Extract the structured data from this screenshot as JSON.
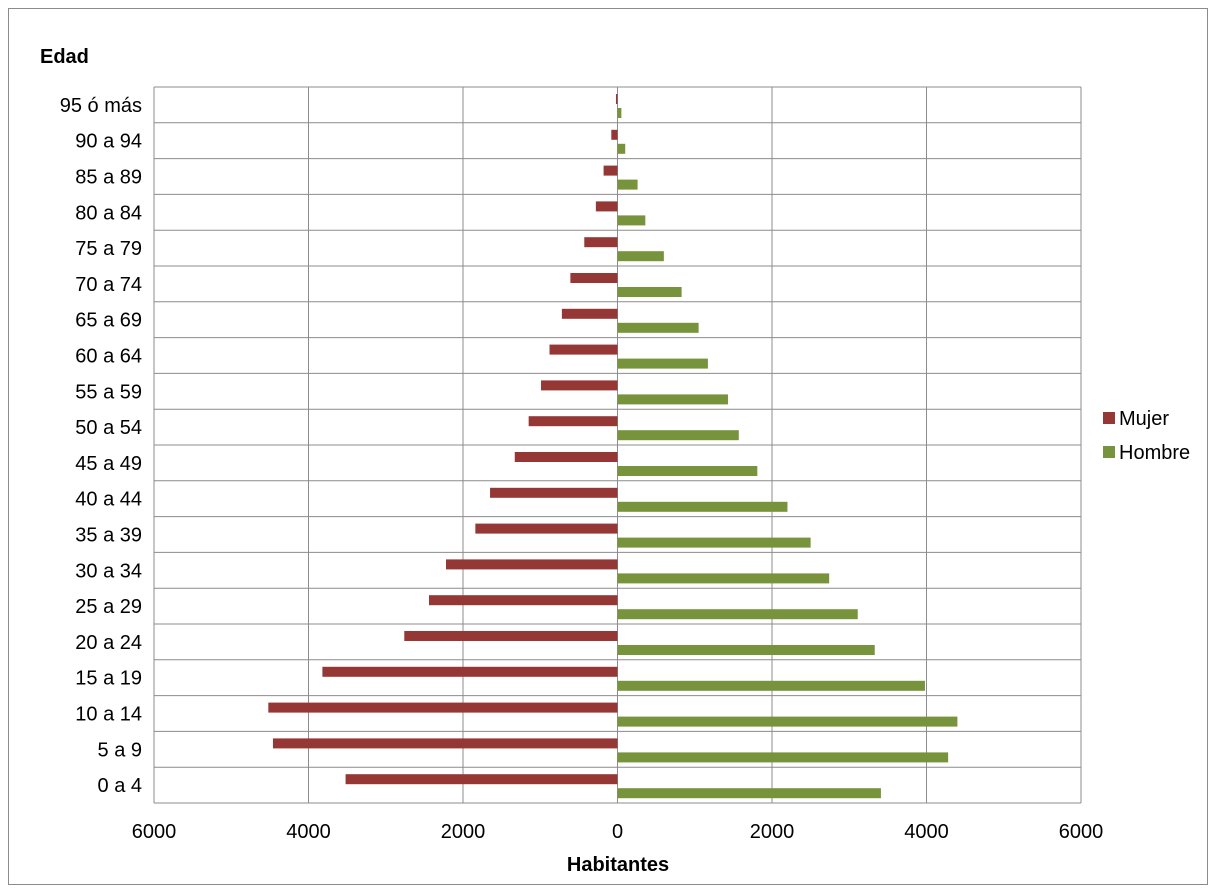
{
  "chart_data": {
    "type": "bar",
    "orientation": "horizontal",
    "subtype": "population-pyramid",
    "title": "",
    "xlabel": "Habitantes",
    "ylabel": "Edad",
    "xlim": [
      -6000,
      6000
    ],
    "xticks": [
      -6000,
      -4000,
      -2000,
      0,
      2000,
      4000,
      6000
    ],
    "xtick_labels": [
      "6000",
      "4000",
      "2000",
      "0",
      "2000",
      "4000",
      "6000"
    ],
    "grid": true,
    "legend_position": "right",
    "categories": [
      "0 a 4",
      "5 a 9",
      "10 a 14",
      "15 a 19",
      "20 a 24",
      "25 a 29",
      "30 a 34",
      "35 a 39",
      "40 a 44",
      "45 a 49",
      "50 a 54",
      "55 a 59",
      "60 a 64",
      "65 a 69",
      "70 a 74",
      "75 a 79",
      "80 a 84",
      "85 a 89",
      "90 a 94",
      "95 ó más"
    ],
    "series": [
      {
        "name": "Mujer",
        "color": "#953735",
        "values": [
          -3520,
          -4460,
          -4520,
          -3820,
          -2760,
          -2440,
          -2220,
          -1840,
          -1650,
          -1330,
          -1150,
          -990,
          -880,
          -720,
          -610,
          -430,
          -280,
          -180,
          -80,
          -20
        ]
      },
      {
        "name": "Hombre",
        "color": "#77933C",
        "values": [
          3410,
          4280,
          4400,
          3980,
          3330,
          3110,
          2740,
          2500,
          2200,
          1810,
          1570,
          1430,
          1170,
          1050,
          830,
          600,
          360,
          260,
          100,
          50
        ]
      }
    ]
  }
}
